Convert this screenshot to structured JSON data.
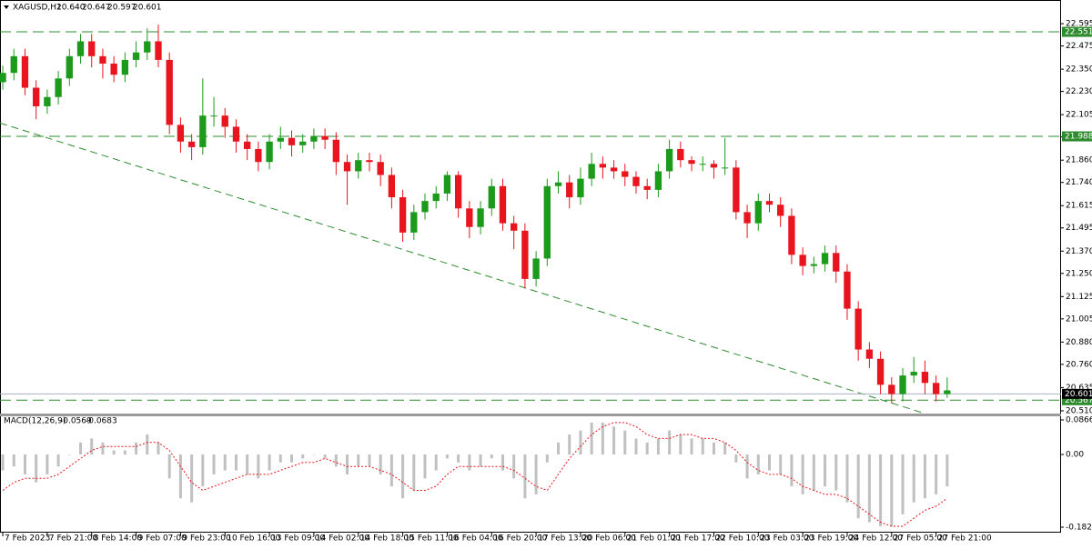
{
  "chart_data": {
    "type": "candlestick",
    "symbol": "XAGUSD,H1",
    "header_values": [
      {
        "value": 20.64,
        "label": "20.640"
      },
      20.647,
      20.597,
      20.601
    ],
    "x": [
      0,
      4,
      8,
      12,
      16,
      20,
      24,
      28,
      32,
      36,
      40,
      44,
      48,
      52,
      56,
      60,
      64,
      68,
      72,
      76,
      80,
      84,
      88,
      92,
      96,
      100,
      104,
      108,
      112,
      116,
      120,
      124,
      128,
      132,
      136,
      140,
      144,
      148,
      152,
      156,
      160,
      164,
      168,
      172,
      176,
      180,
      184,
      188,
      192,
      196,
      200,
      204,
      208,
      212,
      216,
      220,
      224,
      228,
      232,
      236,
      240,
      244,
      248,
      252,
      256,
      260,
      264,
      268,
      272,
      276,
      280,
      284,
      288,
      292,
      296,
      300,
      304,
      308,
      312,
      316,
      320,
      324,
      328,
      332,
      336,
      340
    ],
    "open": [
      22.28,
      22.33,
      22.42,
      22.25,
      22.15,
      22.2,
      22.3,
      22.42,
      22.5,
      22.42,
      22.38,
      22.32,
      22.4,
      22.44,
      22.5,
      22.4,
      22.05,
      21.96,
      21.93,
      22.1,
      22.1,
      22.04,
      21.96,
      21.92,
      21.85,
      21.96,
      21.98,
      21.94,
      21.96,
      21.99,
      21.97,
      21.85,
      21.8,
      21.86,
      21.85,
      21.78,
      21.66,
      21.47,
      21.58,
      21.64,
      21.68,
      21.78,
      21.6,
      21.5,
      21.6,
      21.72,
      21.52,
      21.48,
      21.22,
      21.33,
      21.72,
      21.74,
      21.66,
      21.76,
      21.84,
      21.82,
      21.8,
      21.77,
      21.72,
      21.7,
      21.8,
      21.92,
      21.86,
      21.84,
      21.84,
      21.82,
      21.82,
      21.58,
      21.52,
      21.64,
      21.62,
      21.56,
      21.35,
      21.29,
      21.3,
      21.36,
      21.26,
      21.06,
      20.84,
      20.79,
      20.65,
      20.6,
      20.7,
      20.72,
      20.66,
      20.6
    ],
    "high": [
      22.37,
      22.46,
      22.46,
      22.29,
      22.24,
      22.34,
      22.46,
      22.54,
      22.54,
      22.46,
      22.42,
      22.44,
      22.5,
      22.57,
      22.59,
      22.44,
      22.09,
      22.0,
      22.3,
      22.2,
      22.14,
      22.08,
      22.0,
      21.96,
      22.0,
      22.04,
      22.02,
      22.0,
      22.03,
      22.03,
      22.01,
      21.89,
      21.9,
      21.9,
      21.89,
      21.82,
      21.7,
      21.62,
      21.68,
      21.72,
      21.8,
      21.8,
      21.64,
      21.64,
      21.76,
      21.76,
      21.56,
      21.52,
      21.37,
      21.76,
      21.8,
      21.78,
      21.82,
      21.9,
      21.88,
      21.86,
      21.84,
      21.8,
      21.76,
      21.84,
      21.97,
      21.96,
      21.88,
      21.88,
      21.86,
      21.98,
      21.86,
      21.62,
      21.68,
      21.68,
      21.66,
      21.6,
      21.39,
      21.34,
      21.4,
      21.4,
      21.3,
      21.1,
      20.88,
      20.83,
      20.69,
      20.74,
      20.8,
      20.78,
      20.7,
      20.69
    ],
    "low": [
      22.24,
      22.29,
      22.21,
      22.08,
      22.11,
      22.16,
      22.26,
      22.38,
      22.36,
      22.3,
      22.28,
      22.28,
      22.36,
      22.4,
      22.36,
      22.0,
      21.9,
      21.86,
      21.89,
      22.04,
      21.98,
      21.9,
      21.86,
      21.8,
      21.81,
      21.92,
      21.88,
      21.9,
      21.92,
      21.92,
      21.78,
      21.62,
      21.76,
      21.8,
      21.72,
      21.6,
      21.42,
      21.43,
      21.54,
      21.6,
      21.64,
      21.55,
      21.44,
      21.46,
      21.56,
      21.48,
      21.38,
      21.17,
      21.18,
      21.29,
      21.68,
      21.6,
      21.62,
      21.72,
      21.76,
      21.76,
      21.72,
      21.68,
      21.65,
      21.66,
      21.76,
      21.82,
      21.8,
      21.8,
      21.76,
      21.78,
      21.54,
      21.44,
      21.48,
      21.58,
      21.5,
      21.3,
      21.24,
      21.25,
      21.26,
      21.2,
      21.0,
      20.78,
      20.74,
      20.6,
      20.55,
      20.56,
      20.66,
      20.6,
      20.56,
      20.58
    ],
    "close": [
      22.33,
      22.42,
      22.25,
      22.15,
      22.2,
      22.3,
      22.42,
      22.5,
      22.42,
      22.38,
      22.32,
      22.4,
      22.44,
      22.5,
      22.4,
      22.05,
      21.96,
      21.93,
      22.1,
      22.1,
      22.04,
      21.96,
      21.92,
      21.85,
      21.96,
      21.98,
      21.94,
      21.96,
      21.99,
      21.97,
      21.85,
      21.8,
      21.86,
      21.85,
      21.78,
      21.66,
      21.47,
      21.58,
      21.64,
      21.68,
      21.78,
      21.6,
      21.5,
      21.6,
      21.72,
      21.52,
      21.48,
      21.22,
      21.33,
      21.72,
      21.74,
      21.66,
      21.76,
      21.84,
      21.82,
      21.8,
      21.77,
      21.72,
      21.7,
      21.8,
      21.92,
      21.86,
      21.84,
      21.84,
      21.82,
      21.82,
      21.58,
      21.52,
      21.64,
      21.62,
      21.56,
      21.35,
      21.29,
      21.3,
      21.36,
      21.26,
      21.06,
      20.84,
      20.79,
      20.65,
      20.6,
      20.7,
      20.72,
      20.66,
      20.6,
      20.62
    ],
    "bull_color": "#1c9a1c",
    "bear_color": "#e8141e",
    "xlim": [
      -1,
      381
    ],
    "xticks": [
      {
        "value": 0,
        "label": "7 Feb 2023"
      },
      {
        "value": 16,
        "label": "7 Feb 21:00"
      },
      {
        "value": 32,
        "label": "8 Feb 14:00"
      },
      {
        "value": 48,
        "label": "9 Feb 07:00"
      },
      {
        "value": 64,
        "label": "9 Feb 23:00"
      },
      {
        "value": 80,
        "label": "10 Feb 16:00"
      },
      {
        "value": 96,
        "label": "13 Feb 09:00"
      },
      {
        "value": 112,
        "label": "14 Feb 02:00"
      },
      {
        "value": 128,
        "label": "14 Feb 18:00"
      },
      {
        "value": 144,
        "label": "15 Feb 11:00"
      },
      {
        "value": 160,
        "label": "16 Feb 04:00"
      },
      {
        "value": 176,
        "label": "16 Feb 20:00"
      },
      {
        "value": 192,
        "label": "17 Feb 13:00"
      },
      {
        "value": 208,
        "label": "20 Feb 06:00"
      },
      {
        "value": 224,
        "label": "21 Feb 01:00"
      },
      {
        "value": 240,
        "label": "21 Feb 17:00"
      },
      {
        "value": 256,
        "label": "22 Feb 10:00"
      },
      {
        "value": 272,
        "label": "23 Feb 03:00"
      },
      {
        "value": 288,
        "label": "23 Feb 19:00"
      },
      {
        "value": 304,
        "label": "24 Feb 12:00"
      },
      {
        "value": 320,
        "label": "27 Feb 05:00"
      },
      {
        "value": 336,
        "label": "27 Feb 21:00"
      }
    ],
    "ylim": [
      20.495,
      22.703
    ],
    "yticks": [
      22.595,
      22.475,
      {
        "value": 22.35,
        "label": "22.350"
      },
      {
        "value": 22.23,
        "label": "22.230"
      },
      22.105,
      21.985,
      {
        "value": 21.86,
        "label": "21.860"
      },
      {
        "value": 21.74,
        "label": "21.740"
      },
      21.615,
      21.495,
      {
        "value": 21.37,
        "label": "21.370"
      },
      {
        "value": 21.25,
        "label": "21.250"
      },
      21.125,
      21.005,
      {
        "value": 20.88,
        "label": "20.880"
      },
      {
        "value": 20.76,
        "label": "20.760"
      },
      20.635,
      {
        "value": 20.51,
        "label": "20.510"
      }
    ],
    "levels": [
      22.551,
      21.988,
      20.567
    ],
    "level_color": "#2e8b2e",
    "current_price": 20.601,
    "trendline": {
      "x": [
        -1,
        331
      ],
      "y": [
        22.06,
        20.5
      ]
    },
    "macd": {
      "title": "MACD(12,26,9)",
      "header_values": [
        -0.0569,
        -0.0683
      ],
      "ylim": [
        -0.196,
        0.0957
      ],
      "yticks": [
        0.0866,
        {
          "value": 0,
          "label": "0.00"
        },
        -0.1823
      ],
      "histogram": {
        "color": "#c0c0c0",
        "values": [
          -0.04,
          -0.03,
          -0.05,
          -0.07,
          -0.05,
          -0.03,
          0.0,
          0.03,
          0.04,
          0.03,
          0.01,
          0.01,
          0.03,
          0.05,
          0.03,
          -0.06,
          -0.11,
          -0.12,
          -0.08,
          -0.05,
          -0.04,
          -0.04,
          -0.05,
          -0.06,
          -0.04,
          -0.02,
          -0.02,
          -0.01,
          0.0,
          -0.01,
          -0.03,
          -0.05,
          -0.03,
          -0.03,
          -0.05,
          -0.08,
          -0.11,
          -0.09,
          -0.06,
          -0.04,
          -0.01,
          -0.02,
          -0.04,
          -0.03,
          -0.01,
          -0.04,
          -0.06,
          -0.11,
          -0.1,
          -0.02,
          0.03,
          0.05,
          0.06,
          0.08,
          0.08,
          0.07,
          0.06,
          0.04,
          0.03,
          0.04,
          0.06,
          0.05,
          0.04,
          0.04,
          0.03,
          0.03,
          -0.02,
          -0.06,
          -0.05,
          -0.04,
          -0.05,
          -0.08,
          -0.1,
          -0.09,
          -0.08,
          -0.09,
          -0.12,
          -0.16,
          -0.17,
          -0.18,
          -0.18,
          -0.15,
          -0.12,
          -0.11,
          -0.1,
          -0.08
        ]
      },
      "signal": {
        "color": "#e8141e",
        "values": [
          -0.09,
          -0.07,
          -0.06,
          -0.06,
          -0.06,
          -0.05,
          -0.03,
          -0.01,
          0.01,
          0.02,
          0.02,
          0.02,
          0.02,
          0.03,
          0.03,
          0.01,
          -0.03,
          -0.07,
          -0.09,
          -0.08,
          -0.07,
          -0.06,
          -0.05,
          -0.05,
          -0.05,
          -0.04,
          -0.03,
          -0.02,
          -0.02,
          -0.01,
          -0.02,
          -0.03,
          -0.03,
          -0.03,
          -0.04,
          -0.05,
          -0.07,
          -0.09,
          -0.09,
          -0.08,
          -0.05,
          -0.03,
          -0.03,
          -0.03,
          -0.03,
          -0.03,
          -0.04,
          -0.06,
          -0.08,
          -0.09,
          -0.05,
          -0.01,
          0.02,
          0.05,
          0.07,
          0.08,
          0.08,
          0.07,
          0.05,
          0.04,
          0.04,
          0.05,
          0.05,
          0.04,
          0.04,
          0.03,
          0.01,
          -0.02,
          -0.04,
          -0.05,
          -0.05,
          -0.06,
          -0.08,
          -0.09,
          -0.1,
          -0.1,
          -0.11,
          -0.13,
          -0.15,
          -0.17,
          -0.18,
          -0.18,
          -0.16,
          -0.14,
          -0.13,
          -0.11
        ]
      }
    }
  }
}
